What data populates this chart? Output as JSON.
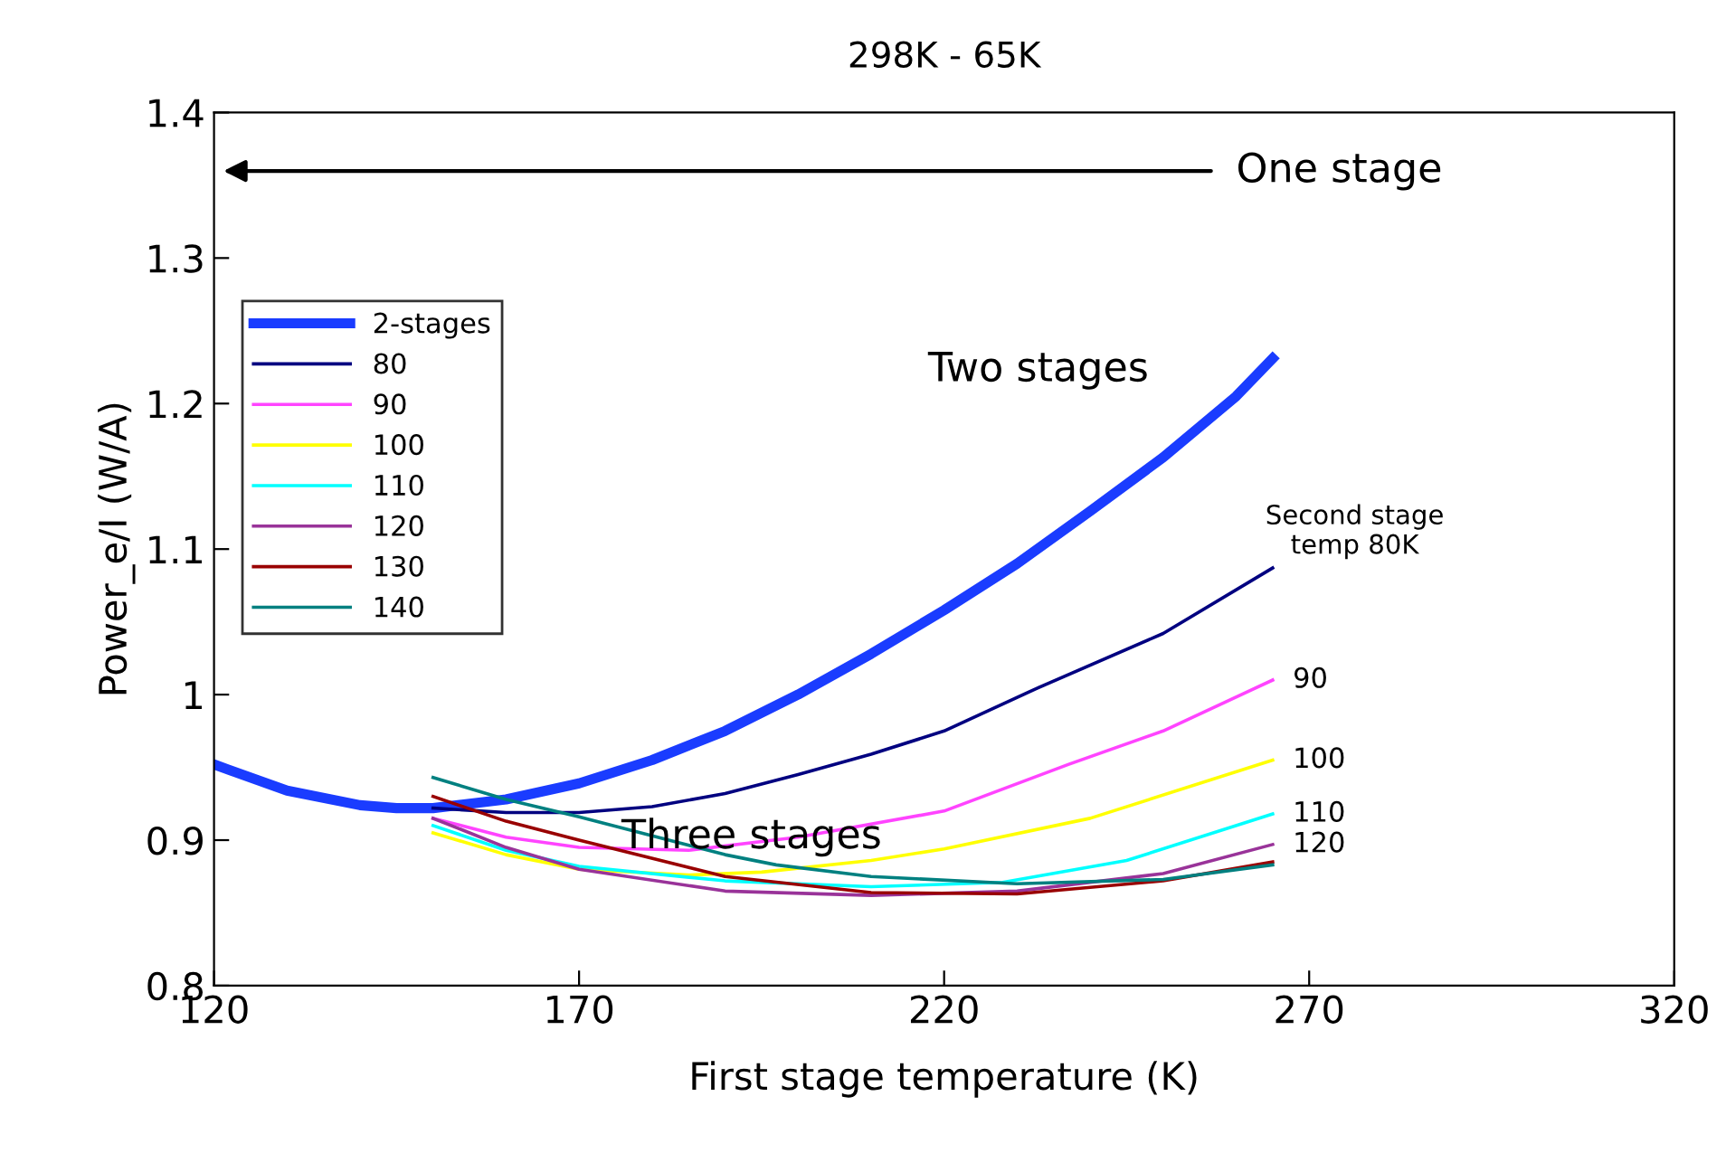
{
  "chart_data": {
    "type": "line",
    "title": "298K - 65K",
    "xlabel": "First stage temperature (K)",
    "ylabel": "Power_e/I (W/A)",
    "xlim": [
      120,
      320
    ],
    "xticks": [
      120,
      170,
      220,
      270,
      320
    ],
    "ylim": [
      0.8,
      1.4
    ],
    "yticks": [
      0.8,
      0.9,
      1,
      1.1,
      1.2,
      1.3,
      1.4
    ],
    "grid": false,
    "legend": "top left",
    "marker": "none",
    "line_style": "solid",
    "series": [
      {
        "name": "2-stages",
        "color": "#1a3cff",
        "x": [
          120,
          130,
          140,
          145,
          150,
          160,
          170,
          180,
          190,
          200,
          210,
          220,
          230,
          240,
          250,
          260,
          265
        ],
        "values": [
          0.952,
          0.934,
          0.924,
          0.922,
          0.922,
          0.928,
          0.939,
          0.955,
          0.975,
          1.0,
          1.028,
          1.058,
          1.09,
          1.126,
          1.163,
          1.205,
          1.231
        ]
      },
      {
        "name": "80",
        "color": "#000080",
        "x": [
          150,
          160,
          170,
          180,
          190,
          200,
          210,
          220,
          233,
          250,
          265
        ],
        "values": [
          0.922,
          0.919,
          0.919,
          0.923,
          0.932,
          0.945,
          0.959,
          0.975,
          1.005,
          1.042,
          1.087
        ]
      },
      {
        "name": "90",
        "color": "#ff44ff",
        "x": [
          150,
          160,
          170,
          185,
          200,
          220,
          237,
          250,
          265
        ],
        "values": [
          0.915,
          0.902,
          0.895,
          0.893,
          0.902,
          0.92,
          0.952,
          0.975,
          1.01
        ]
      },
      {
        "name": "100",
        "color": "#ffff00",
        "x": [
          150,
          160,
          170,
          185,
          195,
          210,
          220,
          240,
          265
        ],
        "values": [
          0.905,
          0.89,
          0.88,
          0.876,
          0.878,
          0.886,
          0.894,
          0.915,
          0.955
        ]
      },
      {
        "name": "110",
        "color": "#00ffff",
        "x": [
          150,
          160,
          170,
          190,
          210,
          228,
          245,
          265
        ],
        "values": [
          0.91,
          0.893,
          0.882,
          0.872,
          0.868,
          0.871,
          0.886,
          0.918
        ]
      },
      {
        "name": "120",
        "color": "#993399",
        "x": [
          150,
          160,
          170,
          190,
          210,
          230,
          250,
          265
        ],
        "values": [
          0.915,
          0.895,
          0.88,
          0.865,
          0.862,
          0.865,
          0.877,
          0.897
        ]
      },
      {
        "name": "130",
        "color": "#990000",
        "x": [
          150,
          160,
          170,
          190,
          210,
          230,
          250,
          265
        ],
        "values": [
          0.93,
          0.913,
          0.9,
          0.875,
          0.864,
          0.863,
          0.872,
          0.885
        ]
      },
      {
        "name": "140",
        "color": "#008080",
        "x": [
          150,
          160,
          170,
          190,
          197,
          210,
          230,
          250,
          265
        ],
        "values": [
          0.943,
          0.928,
          0.916,
          0.89,
          0.883,
          0.875,
          0.87,
          0.873,
          0.883
        ]
      }
    ],
    "annotations": [
      "One stage",
      "Two stages",
      "Three stages",
      "Second stage\ntemp 80K",
      "90",
      "100",
      "110",
      "120"
    ]
  }
}
